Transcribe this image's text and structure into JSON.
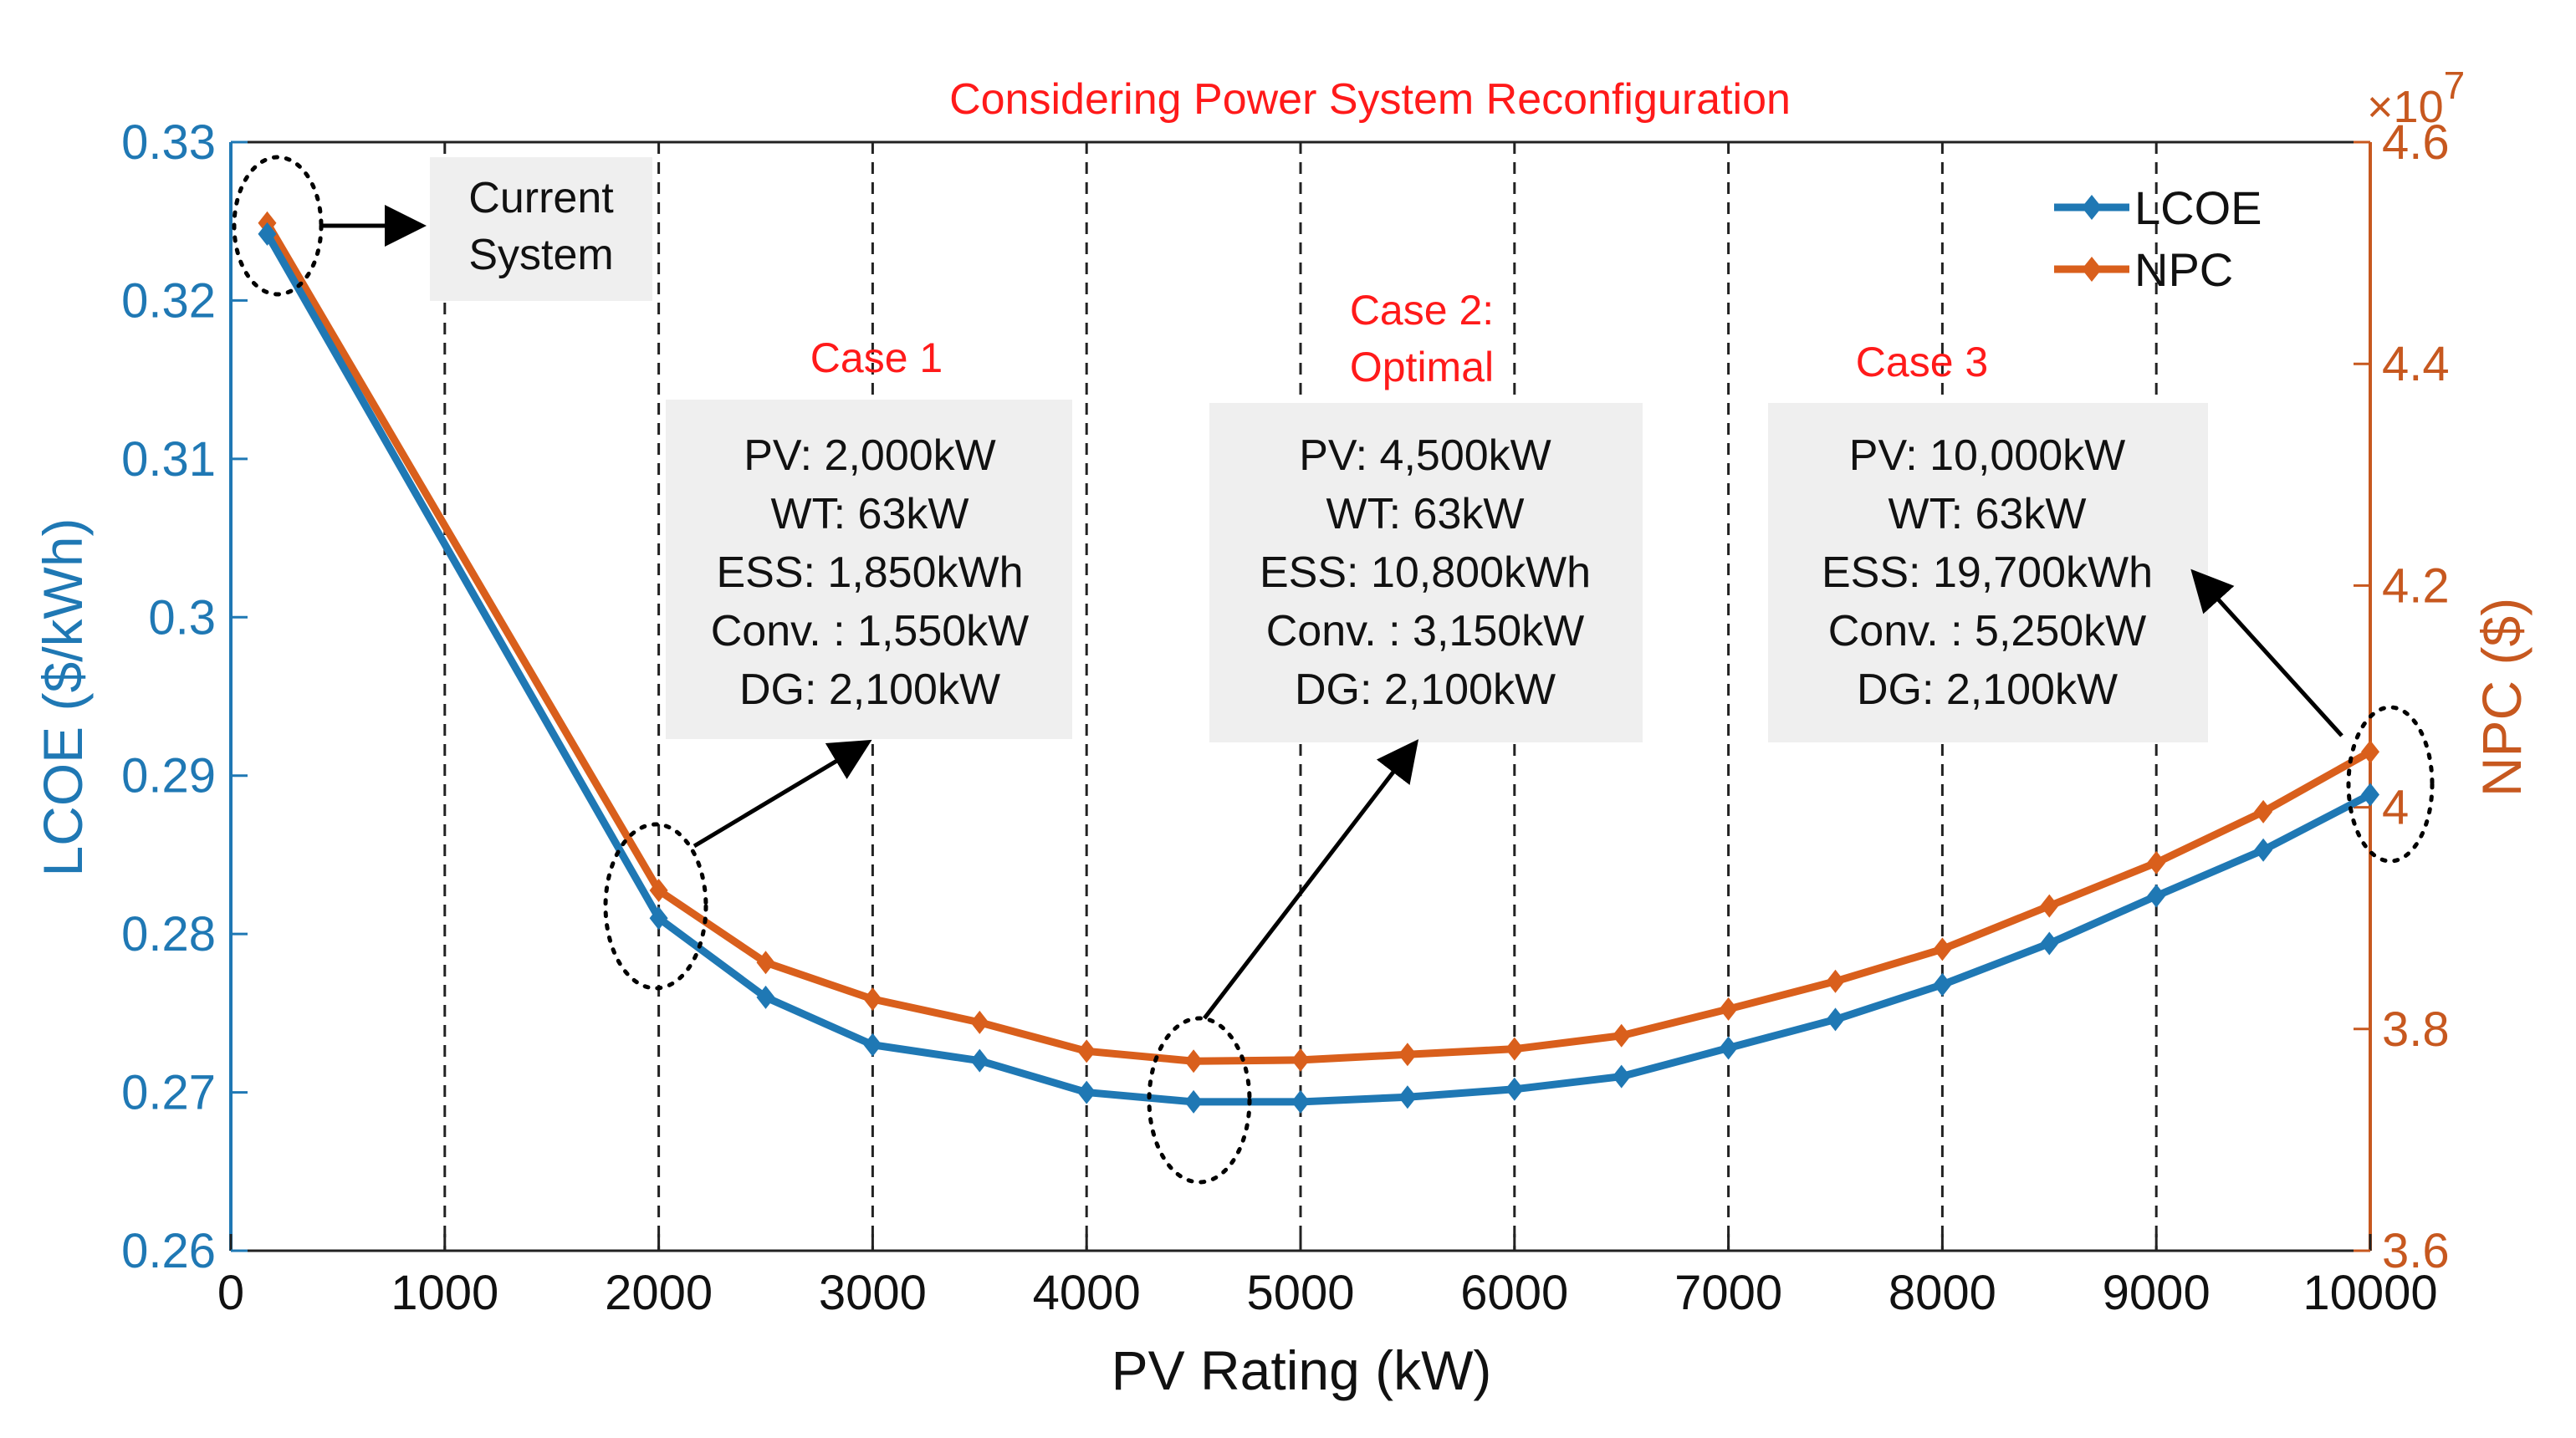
{
  "colors": {
    "lcoe": "#1f78b4",
    "npc": "#d95f1c",
    "npc_axis": "#c7581f",
    "annotation": "#ff1a1a",
    "box_fill": "#efefef"
  },
  "chart_data": {
    "type": "line",
    "title": "Considering Power System Reconfiguration",
    "xlabel": "PV Rating (kW)",
    "ylabel_left": "LCOE ($/kWh)",
    "ylabel_right": "NPC ($)",
    "right_axis_exponent": "×10",
    "right_axis_exponent_power": "7",
    "xlim": [
      0,
      10000
    ],
    "ylim_left": [
      0.26,
      0.33
    ],
    "ylim_right": [
      3.6,
      4.6
    ],
    "x_ticks": [
      "0",
      "1000",
      "2000",
      "3000",
      "4000",
      "5000",
      "6000",
      "7000",
      "8000",
      "9000",
      "10000"
    ],
    "y_left_ticks": [
      "0.26",
      "0.27",
      "0.28",
      "0.29",
      "0.3",
      "0.31",
      "0.32",
      "0.33"
    ],
    "y_right_ticks": [
      "3.6",
      "3.8",
      "4",
      "4.2",
      "4.4",
      "4.6"
    ],
    "x": [
      170,
      2000,
      2500,
      3000,
      3500,
      4000,
      4500,
      5000,
      5500,
      6000,
      6500,
      7000,
      7500,
      8000,
      8500,
      9000,
      9500,
      10000
    ],
    "series": [
      {
        "name": "LCOE",
        "axis": "left",
        "values": [
          0.3242,
          0.281,
          0.276,
          0.273,
          0.272,
          0.27,
          0.2694,
          0.2694,
          0.2697,
          0.2702,
          0.271,
          0.2728,
          0.2746,
          0.2768,
          0.2794,
          0.2824,
          0.2853,
          0.2888
        ]
      },
      {
        "name": "NPC",
        "axis": "right",
        "values": [
          4.527,
          3.925,
          3.86,
          3.827,
          3.806,
          3.78,
          3.771,
          3.772,
          3.777,
          3.782,
          3.794,
          3.818,
          3.843,
          3.872,
          3.911,
          3.95,
          3.996,
          4.05
        ]
      }
    ],
    "legend": {
      "position": "top-right",
      "entries": [
        "LCOE",
        "NPC"
      ]
    },
    "annotations": {
      "current_system": [
        "Current",
        "System"
      ],
      "case1": {
        "label": "Case 1",
        "lines": [
          "PV: 2,000kW",
          "WT: 63kW",
          "ESS: 1,850kWh",
          "Conv. : 1,550kW",
          "DG: 2,100kW"
        ]
      },
      "case2": {
        "label_lines": [
          "Case 2:",
          "Optimal"
        ],
        "lines": [
          "PV: 4,500kW",
          "WT: 63kW",
          "ESS: 10,800kWh",
          "Conv. : 3,150kW",
          "DG: 2,100kW"
        ]
      },
      "case3": {
        "label": "Case 3",
        "lines": [
          "PV: 10,000kW",
          "WT: 63kW",
          "ESS: 19,700kWh",
          "Conv. : 5,250kW",
          "DG: 2,100kW"
        ]
      }
    }
  }
}
